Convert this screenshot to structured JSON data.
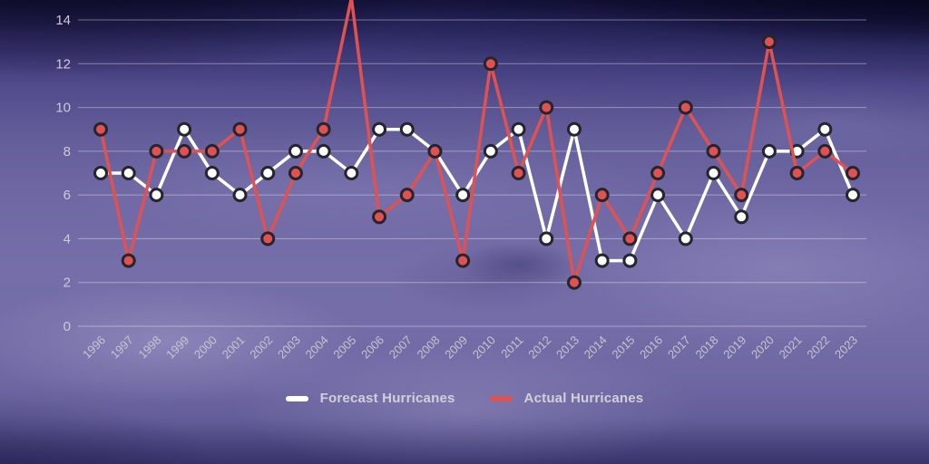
{
  "chart_data": {
    "type": "line",
    "title": "",
    "xlabel": "",
    "ylabel": "",
    "x": [
      "1996",
      "1997",
      "1998",
      "1999",
      "2000",
      "2001",
      "2002",
      "2003",
      "2004",
      "2005",
      "2006",
      "2007",
      "2008",
      "2009",
      "2010",
      "2011",
      "2012",
      "2013",
      "2014",
      "2015",
      "2016",
      "2017",
      "2018",
      "2019",
      "2020",
      "2021",
      "2022",
      "2023"
    ],
    "series": [
      {
        "name": "Forecast Hurricanes",
        "color": "#ffffff",
        "values": [
          7,
          7,
          6,
          9,
          7,
          6,
          7,
          8,
          8,
          7,
          9,
          9,
          8,
          6,
          8,
          9,
          4,
          9,
          3,
          3,
          6,
          4,
          7,
          5,
          8,
          8,
          9,
          6
        ]
      },
      {
        "name": "Actual Hurricanes",
        "color": "#e05252",
        "values": [
          9,
          3,
          8,
          8,
          8,
          9,
          4,
          7,
          9,
          15,
          5,
          6,
          8,
          3,
          12,
          7,
          10,
          2,
          6,
          4,
          7,
          10,
          8,
          6,
          13,
          7,
          8,
          7
        ]
      }
    ],
    "ylim": [
      0,
      14
    ],
    "yticks": [
      0,
      2,
      4,
      6,
      8,
      10,
      12,
      14
    ],
    "grid": "horizontal-only",
    "legend_position": "bottom-center",
    "x_tick_rotation_deg": -45
  },
  "legend": {
    "items": [
      {
        "label": "Forecast Hurricanes",
        "swatch_color": "#ffffff"
      },
      {
        "label": "Actual Hurricanes",
        "swatch_color": "#e05252"
      }
    ]
  },
  "style": {
    "point_outline_color": "#26252e",
    "gridline_color": "rgba(255,255,255,0.38)",
    "axis_text_color": "#cccad7",
    "x_axis_text_color": "#c7c4d2",
    "legend_text_color": "#d2cfdb",
    "background_theme": "hurricane-satellite-purple"
  }
}
